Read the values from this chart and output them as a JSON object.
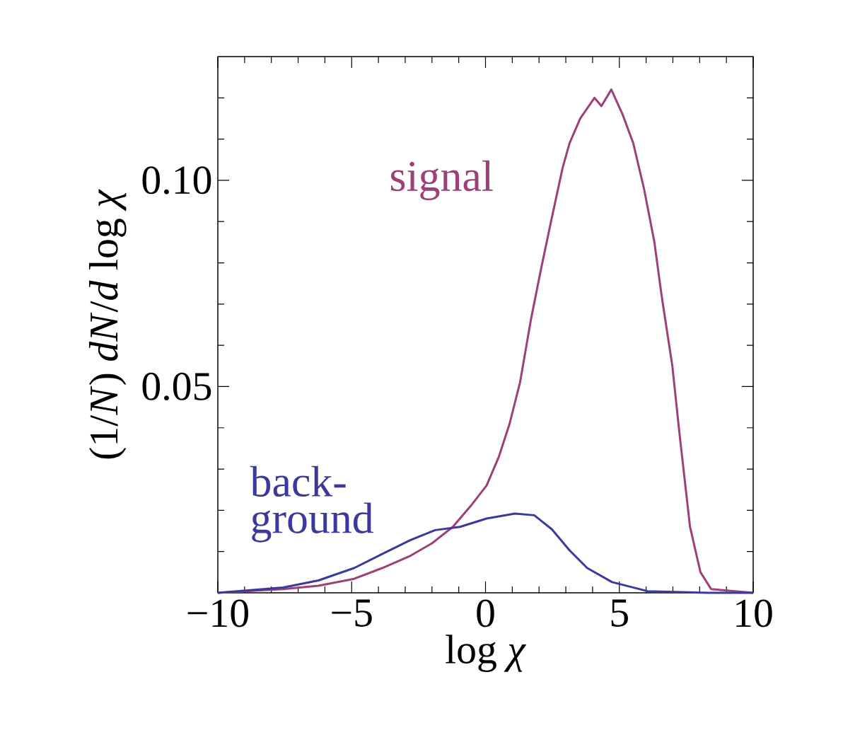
{
  "chart_data": {
    "type": "line",
    "xlabel": "log *χ*",
    "ylabel": "(1/*N*) *dN*/*d* log *χ*",
    "xlim": [
      -10,
      10
    ],
    "ylim": [
      0,
      0.13
    ],
    "xticks": [
      {
        "value": -10,
        "label": "−10"
      },
      {
        "value": -9,
        "label": null
      },
      {
        "value": -8,
        "label": null
      },
      {
        "value": -7,
        "label": null
      },
      {
        "value": -6,
        "label": null
      },
      {
        "value": -5,
        "label": "−5"
      },
      {
        "value": -4,
        "label": null
      },
      {
        "value": -3,
        "label": null
      },
      {
        "value": -2,
        "label": null
      },
      {
        "value": -1,
        "label": null
      },
      0,
      {
        "value": 1,
        "label": null
      },
      {
        "value": 2,
        "label": null
      },
      {
        "value": 3,
        "label": null
      },
      {
        "value": 4,
        "label": null
      },
      5,
      {
        "value": 6,
        "label": null
      },
      {
        "value": 7,
        "label": null
      },
      {
        "value": 8,
        "label": null
      },
      {
        "value": 9,
        "label": null
      },
      10
    ],
    "yticks": [
      {
        "value": 0.01,
        "label": null
      },
      {
        "value": 0.02,
        "label": null
      },
      {
        "value": 0.03,
        "label": null
      },
      {
        "value": 0.04,
        "label": null
      },
      0.05,
      {
        "value": 0.06,
        "label": null
      },
      {
        "value": 0.07,
        "label": null
      },
      {
        "value": 0.08,
        "label": null
      },
      {
        "value": 0.09,
        "label": null
      },
      {
        "value": 0.1,
        "label": "0.10"
      },
      {
        "value": 0.11,
        "label": null
      },
      {
        "value": 0.12,
        "label": null
      }
    ],
    "legend": false,
    "grid": false,
    "series": [
      {
        "name": "signal",
        "color": "#9e4078",
        "x": [
          -10,
          -7.56,
          -6.24,
          -4.91,
          -3.86,
          -2.8,
          -2.0,
          -1.22,
          -0.56,
          0.04,
          0.5,
          0.9,
          1.29,
          1.69,
          2.09,
          2.48,
          2.88,
          3.14,
          3.54,
          4.07,
          4.33,
          4.7,
          5.12,
          5.52,
          5.92,
          6.31,
          6.58,
          6.98,
          7.24,
          7.64,
          8.03,
          8.43,
          10
        ],
        "values": [
          0,
          0.0009,
          0.0017,
          0.0034,
          0.006,
          0.009,
          0.012,
          0.016,
          0.021,
          0.026,
          0.033,
          0.041,
          0.051,
          0.066,
          0.079,
          0.091,
          0.103,
          0.109,
          0.115,
          0.12,
          0.118,
          0.122,
          0.116,
          0.109,
          0.098,
          0.085,
          0.072,
          0.055,
          0.039,
          0.016,
          0.005,
          0.0009,
          0
        ]
      },
      {
        "name": "back-ground",
        "color": "#3a3a9c",
        "x": [
          -10,
          -7.56,
          -6.24,
          -4.91,
          -3.86,
          -2.8,
          -1.88,
          -0.95,
          0.04,
          1.1,
          1.82,
          2.48,
          3.14,
          3.8,
          4.73,
          6.05,
          8.3,
          10
        ],
        "values": [
          0,
          0.0013,
          0.003,
          0.006,
          0.0094,
          0.0128,
          0.0152,
          0.016,
          0.018,
          0.0192,
          0.0188,
          0.0154,
          0.0103,
          0.006,
          0.0026,
          0.0004,
          0,
          0
        ]
      }
    ]
  }
}
